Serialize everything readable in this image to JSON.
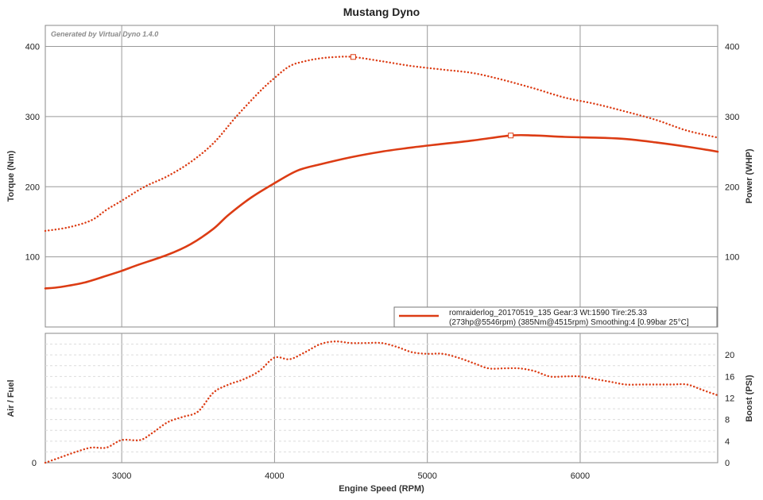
{
  "chart_data": {
    "type": "line",
    "title": "Mustang Dyno",
    "credit": "Generated by Virtual Dyno 1.4.0",
    "xlabel": "Engine Speed (RPM)",
    "xlim": [
      2500,
      6900
    ],
    "xticks": [
      "3000",
      "4000",
      "5000",
      "6000"
    ],
    "xtick_values": [
      3000,
      4000,
      5000,
      6000
    ],
    "top_panel": {
      "ylabel_left": "Torque (Nm)",
      "ylabel_right": "Power (WHP)",
      "ylim": [
        0,
        430
      ],
      "yticks": [
        "100",
        "200",
        "300",
        "400"
      ],
      "ytick_values": [
        100,
        200,
        300,
        400
      ],
      "series": [
        {
          "style": "dotted",
          "color": "#dc3c14",
          "peak_marker_x": 4515,
          "x": [
            2500,
            2650,
            2800,
            2900,
            3000,
            3150,
            3300,
            3450,
            3600,
            3750,
            3900,
            4000,
            4100,
            4200,
            4300,
            4400,
            4515,
            4700,
            4900,
            5100,
            5300,
            5500,
            5700,
            5900,
            6100,
            6300,
            6500,
            6700,
            6900
          ],
          "values": [
            137,
            142,
            152,
            167,
            180,
            200,
            215,
            235,
            262,
            300,
            335,
            355,
            372,
            379,
            383,
            385,
            385,
            379,
            372,
            367,
            362,
            352,
            340,
            327,
            318,
            307,
            295,
            280,
            270
          ]
        },
        {
          "style": "solid",
          "color": "#dc3c14",
          "peak_marker_x": 5546,
          "x": [
            2500,
            2600,
            2750,
            2900,
            3000,
            3100,
            3300,
            3450,
            3600,
            3700,
            3850,
            4000,
            4150,
            4300,
            4500,
            4700,
            4900,
            5100,
            5300,
            5546,
            5700,
            5900,
            6100,
            6300,
            6500,
            6700,
            6900
          ],
          "values": [
            55,
            57,
            63,
            73,
            80,
            88,
            103,
            118,
            140,
            160,
            185,
            205,
            223,
            232,
            242,
            250,
            256,
            261,
            266,
            273,
            273,
            271,
            270,
            268,
            263,
            257,
            250
          ]
        }
      ],
      "legend": {
        "line1": "romraiderlog_20170519_135 Gear:3 Wt:1590 Tire:25.33",
        "line2": "(273hp@5546rpm) (385Nm@4515rpm) Smoothing:4 [0.99bar 25°C]",
        "position": "bottom-right"
      }
    },
    "bottom_panel": {
      "ylabel_left": "Air / Fuel",
      "ylabel_right": "Boost (PSI)",
      "left_ticks": [
        "0"
      ],
      "right_ylim": [
        0,
        24
      ],
      "right_ticks": [
        "0",
        "4",
        "8",
        "12",
        "16",
        "20"
      ],
      "right_tick_values": [
        0,
        4,
        8,
        12,
        16,
        20
      ],
      "series": [
        {
          "name_axis": "Boost (PSI)",
          "style": "dotted",
          "color": "#dc3c14",
          "x": [
            2500,
            2600,
            2700,
            2800,
            2900,
            3000,
            3120,
            3200,
            3300,
            3400,
            3500,
            3600,
            3700,
            3800,
            3900,
            4000,
            4100,
            4200,
            4300,
            4400,
            4500,
            4600,
            4700,
            4800,
            4900,
            5000,
            5100,
            5200,
            5300,
            5400,
            5500,
            5600,
            5700,
            5800,
            5900,
            6000,
            6100,
            6200,
            6300,
            6400,
            6500,
            6600,
            6700,
            6800,
            6900
          ],
          "values": [
            0,
            1,
            2,
            2.8,
            2.8,
            4.2,
            4.2,
            5.5,
            7.5,
            8.5,
            9.5,
            13,
            14.5,
            15.5,
            17,
            19.5,
            19.2,
            20.5,
            22,
            22.5,
            22.2,
            22.2,
            22.2,
            21.5,
            20.5,
            20.2,
            20.2,
            19.5,
            18.5,
            17.5,
            17.5,
            17.5,
            17,
            16,
            16,
            16,
            15.5,
            15,
            14.5,
            14.5,
            14.5,
            14.5,
            14.5,
            13.5,
            12.5
          ]
        }
      ]
    },
    "grid": true
  }
}
